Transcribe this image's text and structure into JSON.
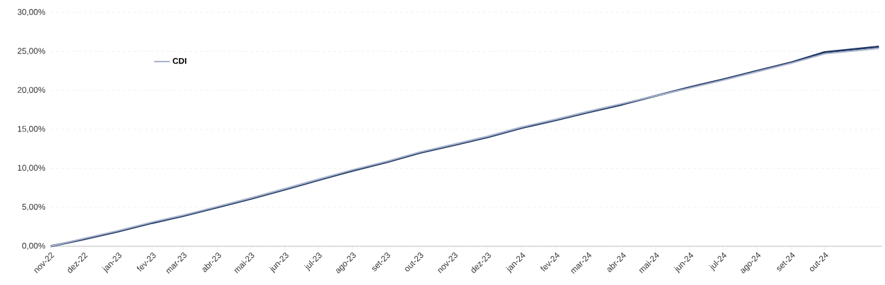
{
  "chart_data": {
    "type": "line",
    "x": [
      "2022-11-01",
      "2022-12-01",
      "2023-01-01",
      "2023-02-01",
      "2023-03-01",
      "2023-04-01",
      "2023-05-01",
      "2023-06-01",
      "2023-07-01",
      "2023-08-01",
      "2023-09-01",
      "2023-10-01",
      "2023-11-01",
      "2023-12-01",
      "2024-01-01",
      "2024-02-01",
      "2024-03-01",
      "2024-04-01",
      "2024-05-01",
      "2024-06-01",
      "2024-07-01",
      "2024-08-01",
      "2024-09-01",
      "2024-10-01",
      "2024-11-19"
    ],
    "series": [
      {
        "color": "#1f3864",
        "values": [
          0,
          0.9,
          1.9,
          3.0,
          3.9,
          5.0,
          6.1,
          7.3,
          8.5,
          9.7,
          10.8,
          12.0,
          13.0,
          14.0,
          15.2,
          16.2,
          17.2,
          18.2,
          19.3,
          20.4,
          21.4,
          22.5,
          23.6,
          24.9,
          25.6
        ]
      },
      {
        "name": "CDI",
        "color": "#a9b4cc",
        "values": [
          0,
          1.0,
          2.0,
          3.1,
          4.0,
          5.1,
          6.2,
          7.4,
          8.6,
          9.8,
          10.9,
          12.1,
          13.1,
          14.1,
          15.3,
          16.3,
          17.3,
          18.3,
          19.3,
          20.3,
          21.3,
          22.4,
          23.5,
          24.7,
          25.4
        ]
      }
    ],
    "xlim": [
      "2022-11-01",
      "2024-11-22"
    ],
    "xticks": [
      {
        "value": "2022-11-01",
        "label": "nov-22"
      },
      {
        "value": "2022-12-01",
        "label": "dez-22"
      },
      {
        "value": "2023-01-01",
        "label": "jan-23"
      },
      {
        "value": "2023-02-01",
        "label": "fev-23"
      },
      {
        "value": "2023-03-01",
        "label": "mar-23"
      },
      {
        "value": "2023-04-01",
        "label": "abr-23"
      },
      {
        "value": "2023-05-01",
        "label": "mai-23"
      },
      {
        "value": "2023-06-01",
        "label": "jun-23"
      },
      {
        "value": "2023-07-01",
        "label": "jul-23"
      },
      {
        "value": "2023-08-01",
        "label": "ago-23"
      },
      {
        "value": "2023-09-01",
        "label": "set-23"
      },
      {
        "value": "2023-10-01",
        "label": "out-23"
      },
      {
        "value": "2023-11-01",
        "label": "nov-23"
      },
      {
        "value": "2023-12-01",
        "label": "dez-23"
      },
      {
        "value": "2024-01-01",
        "label": "jan-24"
      },
      {
        "value": "2024-02-01",
        "label": "fev-24"
      },
      {
        "value": "2024-03-01",
        "label": "mar-24"
      },
      {
        "value": "2024-04-01",
        "label": "abr-24"
      },
      {
        "value": "2024-05-01",
        "label": "mai-24"
      },
      {
        "value": "2024-06-01",
        "label": "jun-24"
      },
      {
        "value": "2024-07-01",
        "label": "jul-24"
      },
      {
        "value": "2024-08-01",
        "label": "ago-24"
      },
      {
        "value": "2024-09-01",
        "label": "set-24"
      },
      {
        "value": "2024-10-01",
        "label": "out-24"
      }
    ],
    "ylim": [
      0,
      30
    ],
    "yticks": [
      {
        "value": 0,
        "label": "0,00%"
      },
      {
        "value": 5,
        "label": "5,00%"
      },
      {
        "value": 10,
        "label": "10,00%"
      },
      {
        "value": 15,
        "label": "15,00%"
      },
      {
        "value": 20,
        "label": "20,00%"
      },
      {
        "value": 25,
        "label": "25,00%"
      },
      {
        "value": 30,
        "label": "30,00%"
      }
    ],
    "grid": "y",
    "legend": "top left",
    "line_style": "solid",
    "marker": "none"
  }
}
